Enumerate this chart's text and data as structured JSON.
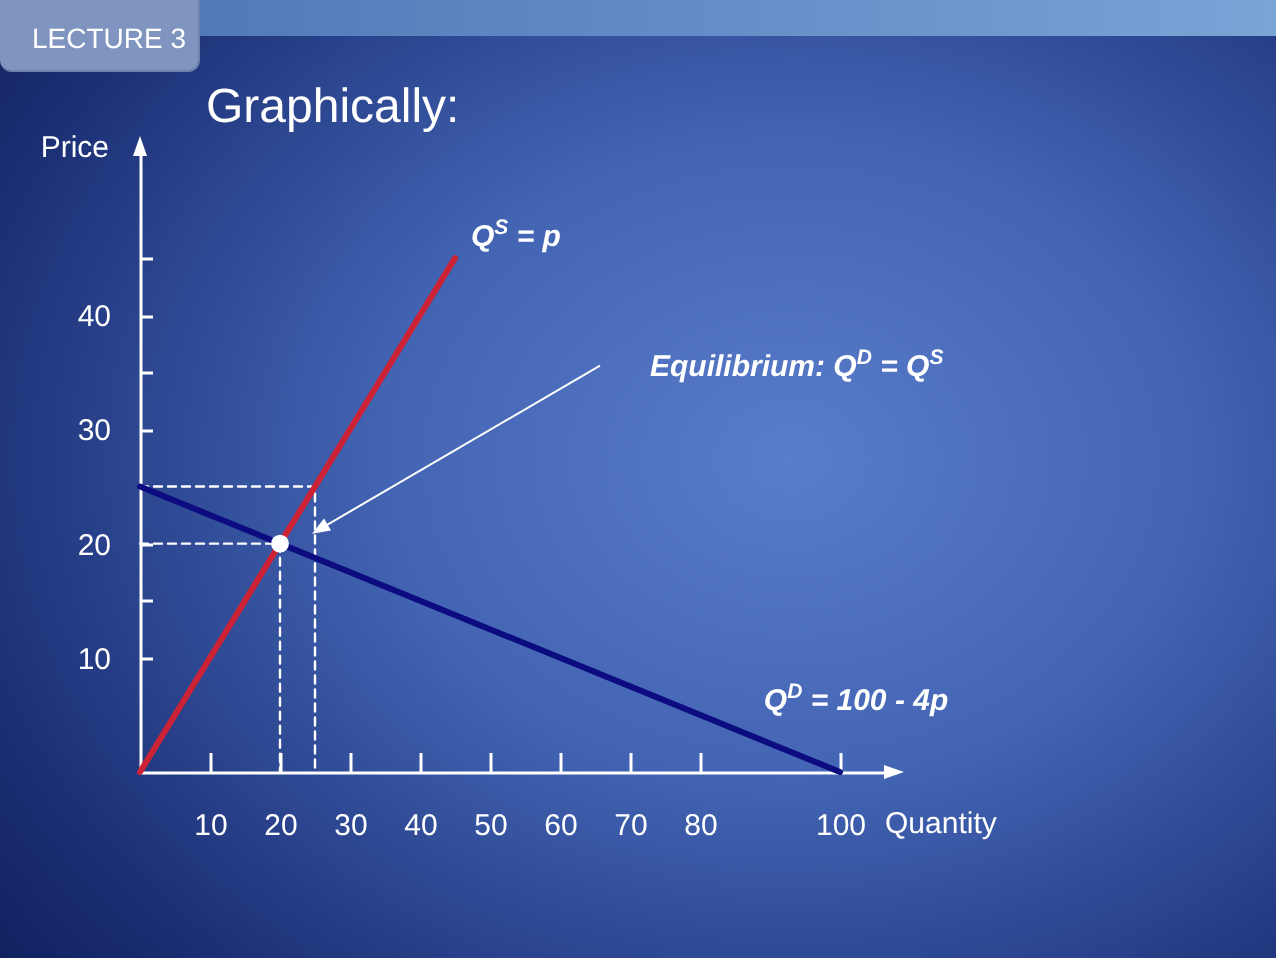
{
  "chart_data": {
    "type": "line",
    "title": "Graphically:",
    "xlabel": "Quantity",
    "ylabel": "Price",
    "xlim": [
      0,
      108
    ],
    "ylim": [
      0,
      55
    ],
    "xticks": [
      10,
      20,
      30,
      40,
      50,
      60,
      70,
      80,
      100
    ],
    "yticks": [
      10,
      {
        "value": 15,
        "label": null
      },
      20,
      30,
      {
        "value": 35,
        "label": null
      },
      40,
      {
        "value": 45,
        "label": null
      }
    ],
    "series": [
      {
        "type": "line",
        "color": "#ffffff",
        "line_style": "dashed",
        "x": [
          0,
          20,
          20
        ],
        "values": [
          20,
          20,
          0
        ]
      },
      {
        "type": "line",
        "color": "#ffffff",
        "line_style": "dashed",
        "x": [
          0,
          25,
          25
        ],
        "values": [
          25,
          25,
          0
        ]
      },
      {
        "name": "Q$^{S}$ = p",
        "type": "line",
        "color": "#cc2236",
        "x": [
          0,
          45
        ],
        "values": [
          0,
          45
        ]
      },
      {
        "name": "Q$^{D}$ = 100 - 4p",
        "type": "line",
        "color": "#0c0c80",
        "x": [
          0,
          100
        ],
        "values": [
          25,
          0
        ]
      },
      {
        "type": "scatter",
        "color": "#ffffff",
        "marker": "circle",
        "x": [
          20
        ],
        "values": [
          20
        ]
      }
    ],
    "annotations": [
      "LECTURE 3",
      "Equilibrium: Q$^{D}$ = Q$^{S}$"
    ]
  }
}
